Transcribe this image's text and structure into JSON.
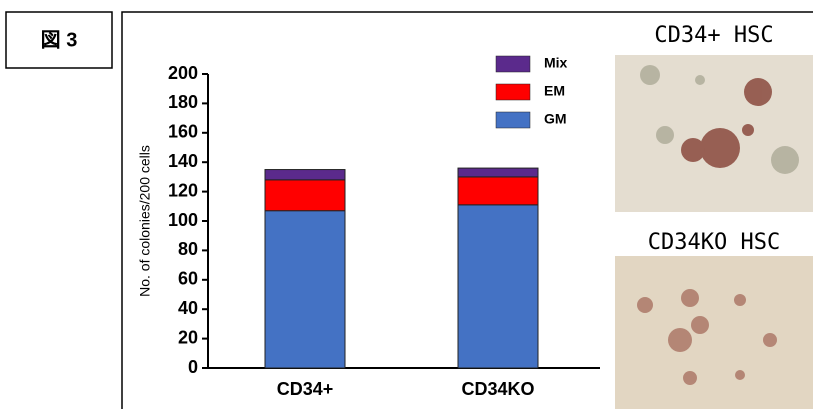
{
  "figure_label": "図 3",
  "chart_data": {
    "type": "stacked_bar",
    "y_label": "No. of colonies/200 cells",
    "categories": [
      "CD34+",
      "CD34KO"
    ],
    "series": [
      {
        "name": "GM",
        "color": "#4472c4",
        "values": [
          107,
          111
        ]
      },
      {
        "name": "EM",
        "color": "#ff0000",
        "values": [
          21,
          19
        ]
      },
      {
        "name": "Mix",
        "color": "#5b2a8c",
        "values": [
          7,
          6
        ]
      }
    ],
    "ylim": [
      0,
      200
    ],
    "yticks": [
      0,
      20,
      40,
      60,
      80,
      100,
      120,
      140,
      160,
      180,
      200
    ],
    "legend": "top-right"
  },
  "panels": [
    {
      "title": "CD34+ HSC"
    },
    {
      "title": "CD34KO HSC"
    }
  ]
}
